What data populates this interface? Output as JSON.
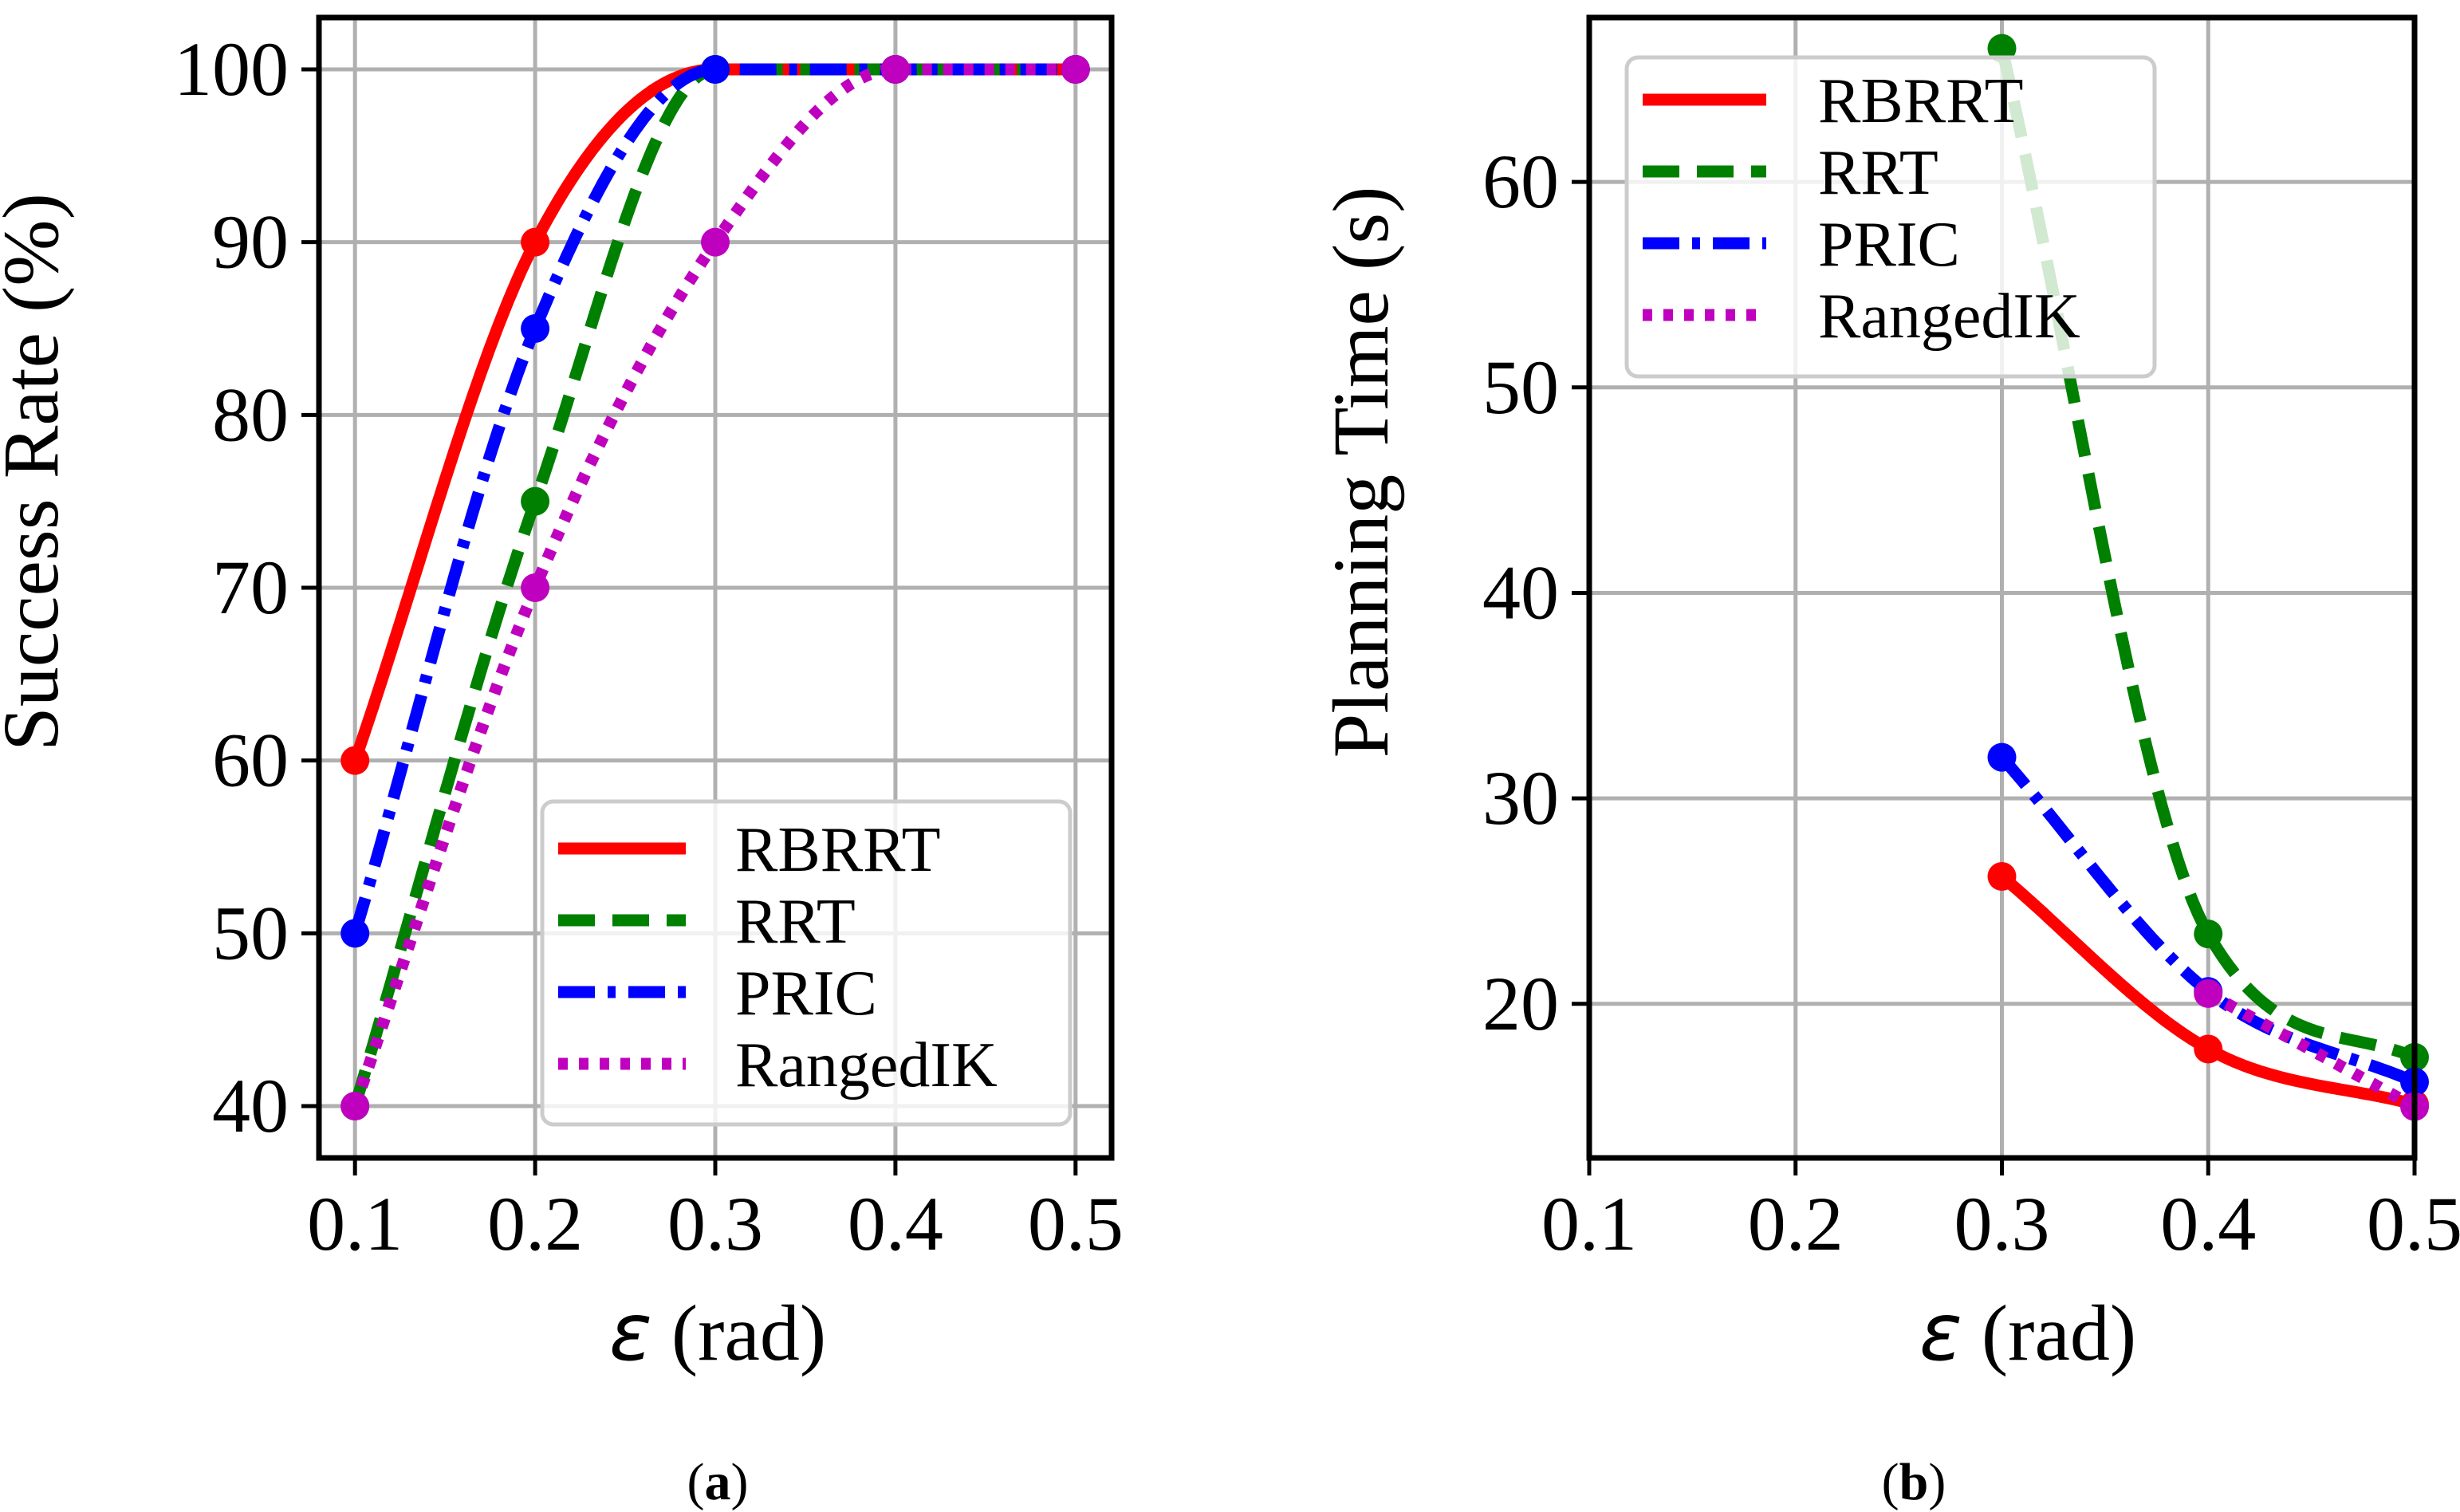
{
  "chart_data": [
    {
      "panel": "a",
      "type": "line",
      "ylabel": "Success Rate (%)",
      "xlabel_symbol": "ε",
      "xlabel_unit": "(rad)",
      "caption_open": "(",
      "caption_letter": "a",
      "caption_close": ")",
      "xlim": [
        0.08,
        0.52
      ],
      "ylim": [
        37,
        103
      ],
      "grid": true,
      "legend_position": "bottom-right",
      "xticks": [
        "0.1",
        "0.2",
        "0.3",
        "0.4",
        "0.5"
      ],
      "yticks": [
        "40",
        "50",
        "60",
        "70",
        "80",
        "90",
        "100"
      ],
      "series": [
        {
          "name": "RBRRT",
          "style": "solid",
          "color": "#ff0000",
          "x": [
            0.1,
            0.2,
            0.3,
            0.4,
            0.5
          ],
          "y": [
            60,
            90,
            100,
            100,
            100
          ]
        },
        {
          "name": "RRT",
          "style": "dashed",
          "color": "#008000",
          "x": [
            0.1,
            0.2,
            0.3,
            0.4,
            0.5
          ],
          "y": [
            40,
            75,
            100,
            100,
            100
          ]
        },
        {
          "name": "PRIC",
          "style": "dashdot",
          "color": "#0000ff",
          "x": [
            0.1,
            0.2,
            0.3,
            0.4,
            0.5
          ],
          "y": [
            50,
            85,
            100,
            100,
            100
          ]
        },
        {
          "name": "RangedIK",
          "style": "dotted",
          "color": "#bf00bf",
          "x": [
            0.1,
            0.2,
            0.3,
            0.4,
            0.5
          ],
          "y": [
            40,
            70,
            90,
            100,
            100
          ]
        }
      ]
    },
    {
      "panel": "b",
      "type": "line",
      "ylabel": "Planning Time (s)",
      "xlabel_symbol": "ε",
      "xlabel_unit": "(rad)",
      "caption_open": "(",
      "caption_letter": "b",
      "caption_close": ")",
      "xlim": [
        0.1,
        0.5
      ],
      "ylim": [
        12.5,
        68
      ],
      "grid": true,
      "legend_position": "top-left",
      "xticks": [
        "0.1",
        "0.2",
        "0.3",
        "0.4",
        "0.5"
      ],
      "yticks": [
        "20",
        "30",
        "40",
        "50",
        "60"
      ],
      "series": [
        {
          "name": "RBRRT",
          "style": "solid",
          "color": "#ff0000",
          "x": [
            0.3,
            0.4,
            0.5
          ],
          "y": [
            26.2,
            17.8,
            15.1
          ]
        },
        {
          "name": "RRT",
          "style": "dashed",
          "color": "#008000",
          "x": [
            0.3,
            0.4,
            0.5
          ],
          "y": [
            66.5,
            23.4,
            17.4
          ]
        },
        {
          "name": "PRIC",
          "style": "dashdot",
          "color": "#0000ff",
          "x": [
            0.3,
            0.4,
            0.5
          ],
          "y": [
            32.0,
            20.6,
            16.2
          ]
        },
        {
          "name": "RangedIK",
          "style": "dotted",
          "color": "#bf00bf",
          "x": [
            0.4,
            0.5
          ],
          "y": [
            20.5,
            15.0
          ]
        }
      ]
    }
  ]
}
